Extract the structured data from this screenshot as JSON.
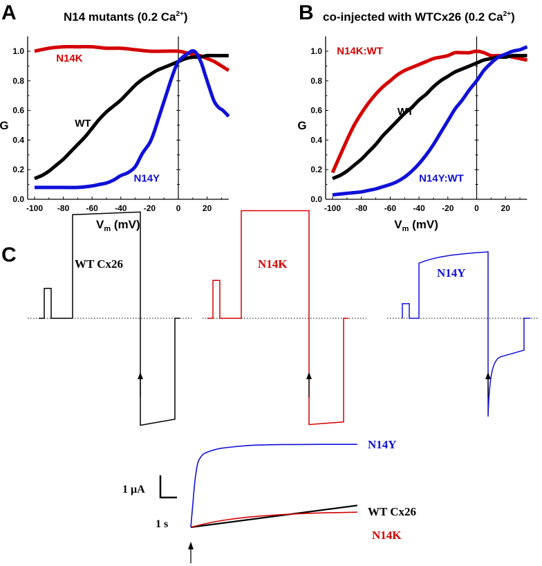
{
  "colors": {
    "WT": "#000000",
    "N14K": "#d40000",
    "N14Y": "#1010d8",
    "axis": "#000000"
  },
  "panels": {
    "A": {
      "letter": "A"
    },
    "B": {
      "letter": "B"
    },
    "C": {
      "letter": "C"
    }
  },
  "chart_data": [
    {
      "id": "A",
      "type": "scatter",
      "title": "N14 mutants (0.2 Ca2+)",
      "title_main": "N14 mutants (0.2 Ca",
      "title_sup": "2+",
      "title_end": ")",
      "xlabel": "V",
      "xlabel_sub": "m",
      "xlabel_unit": " (mV)",
      "ylabel": "G",
      "xlim": [
        -105,
        35
      ],
      "ylim": [
        0.0,
        1.1
      ],
      "xticks": [
        -100,
        -80,
        -60,
        -40,
        -20,
        0,
        20
      ],
      "xtick_labels": [
        "-100",
        "-80",
        "-60",
        "-40",
        "-20",
        "0",
        "20"
      ],
      "yticks": [
        0.0,
        0.2,
        0.4,
        0.6,
        0.8,
        1.0
      ],
      "ytick_labels": [
        "0.0",
        "0.2",
        "0.4",
        "0.6",
        "0.8",
        "1.0"
      ],
      "grid": false,
      "series": [
        {
          "name": "N14K",
          "label": "N14K",
          "color_key": "N14K",
          "x": [
            -100,
            -90,
            -80,
            -70,
            -60,
            -50,
            -40,
            -30,
            -20,
            -10,
            0,
            5,
            10,
            15,
            20,
            25,
            30,
            35
          ],
          "y": [
            1.0,
            1.02,
            1.03,
            1.03,
            1.03,
            1.02,
            1.02,
            1.01,
            1.0,
            1.0,
            1.0,
            0.99,
            0.98,
            0.97,
            0.95,
            0.93,
            0.9,
            0.87
          ]
        },
        {
          "name": "WT",
          "label": "WT",
          "color_key": "WT",
          "x": [
            -100,
            -95,
            -90,
            -85,
            -80,
            -75,
            -70,
            -65,
            -60,
            -55,
            -50,
            -45,
            -40,
            -35,
            -30,
            -25,
            -20,
            -15,
            -10,
            -5,
            0,
            5,
            10,
            15,
            20,
            25,
            30,
            35
          ],
          "y": [
            0.14,
            0.16,
            0.19,
            0.23,
            0.27,
            0.32,
            0.37,
            0.42,
            0.48,
            0.54,
            0.59,
            0.63,
            0.67,
            0.72,
            0.77,
            0.81,
            0.84,
            0.87,
            0.89,
            0.91,
            0.93,
            0.95,
            0.96,
            0.96,
            0.97,
            0.97,
            0.97,
            0.97
          ]
        },
        {
          "name": "N14Y",
          "label": "N14Y",
          "color_key": "N14Y",
          "x": [
            -100,
            -90,
            -80,
            -70,
            -60,
            -55,
            -50,
            -45,
            -40,
            -35,
            -30,
            -25,
            -20,
            -17,
            -14,
            -11,
            -8,
            -5,
            -2,
            0,
            3,
            6,
            9,
            11,
            13,
            16,
            19,
            22,
            25,
            28,
            31,
            35
          ],
          "y": [
            0.08,
            0.08,
            0.08,
            0.08,
            0.09,
            0.1,
            0.11,
            0.13,
            0.16,
            0.18,
            0.22,
            0.31,
            0.38,
            0.45,
            0.54,
            0.63,
            0.72,
            0.81,
            0.89,
            0.93,
            0.96,
            0.98,
            1.0,
            1.0,
            0.98,
            0.92,
            0.83,
            0.74,
            0.66,
            0.62,
            0.6,
            0.56
          ]
        }
      ],
      "annotations": [
        {
          "text": "N14K",
          "color_key": "N14K",
          "x": -85,
          "y": 0.93
        },
        {
          "text": "WT",
          "color_key": "WT",
          "x": -72,
          "y": 0.49
        },
        {
          "text": "N14Y",
          "color_key": "N14Y",
          "x": -31,
          "y": 0.12
        }
      ]
    },
    {
      "id": "B",
      "type": "scatter",
      "title": "co-injected with WTCx26 (0.2 Ca2+)",
      "title_main": "co-injected with WTCx26 (0.2 Ca",
      "title_sup": "2+",
      "title_end": ")",
      "xlabel": "V",
      "xlabel_sub": "m",
      "xlabel_unit": " (mV)",
      "ylabel": "G",
      "xlim": [
        -105,
        35
      ],
      "ylim": [
        0.0,
        1.1
      ],
      "xticks": [
        -100,
        -80,
        -60,
        -40,
        -20,
        0,
        20
      ],
      "xtick_labels": [
        "-100",
        "-80",
        "-60",
        "-40",
        "-20",
        "0",
        "20"
      ],
      "yticks": [
        0.0,
        0.2,
        0.4,
        0.6,
        0.8,
        1.0
      ],
      "ytick_labels": [
        "0.0",
        "0.2",
        "0.4",
        "0.6",
        "0.8",
        "1.0"
      ],
      "grid": false,
      "series": [
        {
          "name": "N14K:WT",
          "label": "N14K:WT",
          "color_key": "N14K",
          "x": [
            -100,
            -95,
            -90,
            -85,
            -80,
            -75,
            -70,
            -65,
            -60,
            -55,
            -50,
            -45,
            -40,
            -35,
            -30,
            -25,
            -20,
            -15,
            -10,
            -5,
            0,
            5,
            10,
            15,
            20,
            25,
            30,
            35
          ],
          "y": [
            0.18,
            0.29,
            0.4,
            0.5,
            0.58,
            0.65,
            0.71,
            0.76,
            0.8,
            0.84,
            0.87,
            0.89,
            0.91,
            0.93,
            0.95,
            0.96,
            0.97,
            0.99,
            0.99,
            0.99,
            1.0,
            0.99,
            0.97,
            0.97,
            0.97,
            0.96,
            0.95,
            0.94
          ]
        },
        {
          "name": "WT",
          "label": "WT",
          "color_key": "WT",
          "x": [
            -100,
            -95,
            -90,
            -85,
            -80,
            -75,
            -70,
            -65,
            -60,
            -55,
            -50,
            -45,
            -40,
            -35,
            -30,
            -25,
            -20,
            -15,
            -10,
            -5,
            0,
            5,
            10,
            15,
            20,
            25,
            30,
            35
          ],
          "y": [
            0.14,
            0.16,
            0.19,
            0.23,
            0.27,
            0.32,
            0.37,
            0.43,
            0.48,
            0.53,
            0.58,
            0.62,
            0.67,
            0.71,
            0.76,
            0.8,
            0.83,
            0.86,
            0.88,
            0.9,
            0.92,
            0.94,
            0.95,
            0.96,
            0.96,
            0.97,
            0.97,
            0.97
          ]
        },
        {
          "name": "N14Y:WT",
          "label": "N14Y:WT",
          "color_key": "N14Y",
          "x": [
            -100,
            -95,
            -90,
            -85,
            -80,
            -75,
            -70,
            -65,
            -60,
            -55,
            -50,
            -45,
            -40,
            -35,
            -30,
            -25,
            -20,
            -15,
            -10,
            -5,
            0,
            5,
            10,
            15,
            20,
            25,
            30,
            35
          ],
          "y": [
            0.03,
            0.035,
            0.04,
            0.045,
            0.05,
            0.06,
            0.07,
            0.085,
            0.1,
            0.12,
            0.15,
            0.19,
            0.24,
            0.3,
            0.37,
            0.45,
            0.53,
            0.61,
            0.67,
            0.74,
            0.8,
            0.87,
            0.92,
            0.96,
            0.98,
            1.0,
            1.01,
            1.03
          ]
        }
      ],
      "annotations": [
        {
          "text": "N14K:WT",
          "color_key": "N14K",
          "x": -97,
          "y": 0.98
        },
        {
          "text": "WT",
          "color_key": "WT",
          "x": -55,
          "y": 0.57
        },
        {
          "text": "N14Y:WT",
          "color_key": "N14Y",
          "x": -40,
          "y": 0.12
        }
      ]
    },
    {
      "id": "C-traces",
      "type": "line",
      "description": "Current traces in response to voltage protocol; dotted line marks zero current; arrows mark onset of hyperpolarizing step",
      "traces": [
        {
          "name": "WT Cx26",
          "label": "WT Cx26",
          "color_key": "WT",
          "levels": {
            "baseline": 0,
            "prepulse": 0.45,
            "depol_start": 1.56,
            "depol_end": 1.6,
            "hyper_start": -1.61,
            "hyper_end": -1.52
          },
          "decay": "linear"
        },
        {
          "name": "N14K",
          "label": "N14K",
          "color_key": "N14K",
          "levels": {
            "baseline": 0,
            "prepulse": 0.57,
            "depol_start": 1.62,
            "depol_end": 1.62,
            "hyper_start": -1.6,
            "hyper_end": -1.56
          },
          "decay": "linear"
        },
        {
          "name": "N14Y",
          "label": "N14Y",
          "color_key": "N14Y",
          "levels": {
            "baseline": 0,
            "prepulse": 0.22,
            "depol_start": 0.83,
            "depol_end": 1.0,
            "hyper_start": -1.48,
            "hyper_end": -0.48
          },
          "decay": "exponential"
        }
      ]
    },
    {
      "id": "C-expanded",
      "type": "line",
      "description": "Expanded tail currents (inverted) after hyperpolarizing step",
      "scale_bar": {
        "current": "1 μA",
        "time": "1 s"
      },
      "series": [
        {
          "name": "N14Y",
          "label": "N14Y",
          "color_key": "N14Y",
          "t": [
            0,
            0.05,
            0.1,
            0.15,
            0.2,
            0.3,
            0.4,
            0.6,
            0.8,
            1.2,
            1.6,
            2.0,
            2.5,
            3.0,
            3.5,
            4.0,
            4.5
          ],
          "i": [
            0,
            1.2,
            2.4,
            3.2,
            3.7,
            4.05,
            4.2,
            4.35,
            4.45,
            4.55,
            4.62,
            4.65,
            4.67,
            4.67,
            4.68,
            4.68,
            4.68
          ]
        },
        {
          "name": "WT Cx26",
          "label": "WT Cx26",
          "color_key": "WT",
          "t": [
            0,
            4.5
          ],
          "i": [
            0,
            1.23
          ]
        },
        {
          "name": "N14K",
          "label": "N14K",
          "color_key": "N14K",
          "t": [
            0,
            0.5,
            1.0,
            1.5,
            2.0,
            2.5,
            3.0,
            3.5,
            4.0,
            4.5
          ],
          "i": [
            0,
            0.25,
            0.43,
            0.56,
            0.65,
            0.72,
            0.77,
            0.81,
            0.83,
            0.85
          ]
        }
      ]
    }
  ]
}
